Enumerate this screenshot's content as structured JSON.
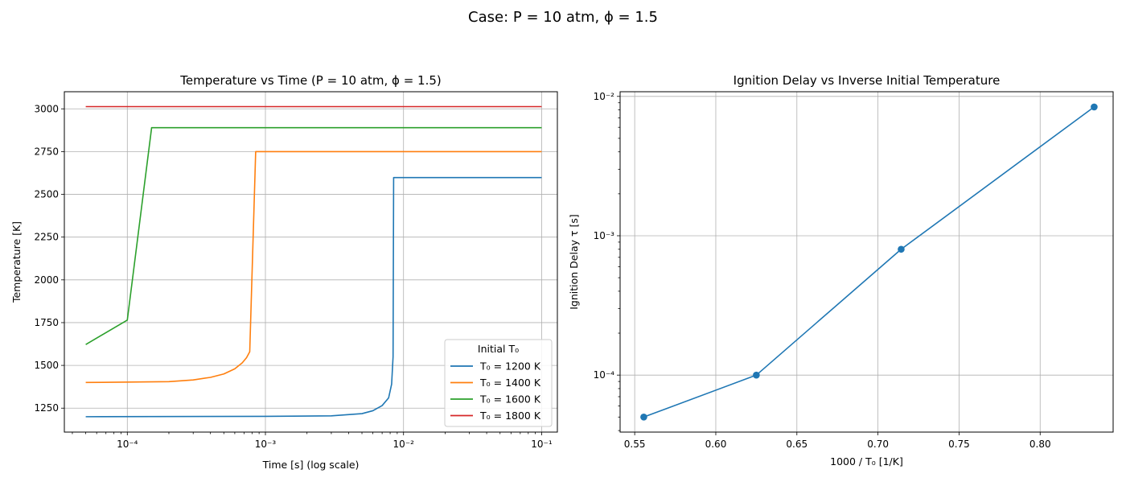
{
  "figure": {
    "suptitle": "Case: P = 10 atm, ϕ = 1.5"
  },
  "chart_data": [
    {
      "type": "line",
      "title": "Temperature vs Time (P = 10 atm, ϕ = 1.5)",
      "xlabel": "Time [s] (log scale)",
      "ylabel": "Temperature [K]",
      "xscale": "log",
      "xlim": [
        3.5e-05,
        0.13
      ],
      "ylim": [
        1110,
        3100
      ],
      "x_ticks": [
        0.0001,
        0.001,
        0.01,
        0.1
      ],
      "x_tick_labels": [
        "10⁻⁴",
        "10⁻³",
        "10⁻²",
        "10⁻¹"
      ],
      "y_ticks": [
        1250,
        1500,
        1750,
        2000,
        2250,
        2500,
        2750,
        3000
      ],
      "y_tick_labels": [
        "1250",
        "1500",
        "1750",
        "2000",
        "2250",
        "2500",
        "2750",
        "3000"
      ],
      "grid": true,
      "legend": {
        "title": "Initial T₀",
        "placement": "lower-right"
      },
      "series": [
        {
          "name": "T₀ = 1200 K",
          "color": "#1f77b4",
          "points": [
            [
              5e-05,
              1200
            ],
            [
              0.001,
              1202
            ],
            [
              0.003,
              1205
            ],
            [
              0.005,
              1218
            ],
            [
              0.006,
              1235
            ],
            [
              0.007,
              1265
            ],
            [
              0.0078,
              1310
            ],
            [
              0.0082,
              1390
            ],
            [
              0.0084,
              1550
            ],
            [
              0.00848,
              2598
            ],
            [
              0.1,
              2598
            ]
          ]
        },
        {
          "name": "T₀ = 1400 K",
          "color": "#ff7f0e",
          "points": [
            [
              5e-05,
              1400
            ],
            [
              0.0002,
              1405
            ],
            [
              0.0003,
              1415
            ],
            [
              0.0004,
              1430
            ],
            [
              0.0005,
              1450
            ],
            [
              0.0006,
              1480
            ],
            [
              0.00068,
              1515
            ],
            [
              0.00073,
              1545
            ],
            [
              0.00077,
              1580
            ],
            [
              0.00085,
              2750
            ],
            [
              0.1,
              2750
            ]
          ]
        },
        {
          "name": "T₀ = 1600 K",
          "color": "#2ca02c",
          "points": [
            [
              5e-05,
              1622
            ],
            [
              0.0001,
              1765
            ],
            [
              0.00015,
              2890
            ],
            [
              0.1,
              2890
            ]
          ]
        },
        {
          "name": "T₀ = 1800 K",
          "color": "#d62728",
          "points": [
            [
              5e-05,
              3013
            ],
            [
              0.1,
              3013
            ]
          ]
        }
      ]
    },
    {
      "type": "line",
      "title": "Ignition Delay vs Inverse Initial Temperature",
      "xlabel": "1000 / T₀ [1/K]",
      "ylabel": "Ignition Delay τ [s]",
      "yscale": "log",
      "xlim": [
        0.541,
        0.845
      ],
      "ylim": [
        3.9e-05,
        0.0108
      ],
      "x_ticks": [
        0.55,
        0.6,
        0.65,
        0.7,
        0.75,
        0.8
      ],
      "x_tick_labels": [
        "0.55",
        "0.60",
        "0.65",
        "0.70",
        "0.75",
        "0.80"
      ],
      "y_ticks": [
        0.0001,
        0.001,
        0.01
      ],
      "y_tick_labels": [
        "10⁻⁴",
        "10⁻³",
        "10⁻²"
      ],
      "grid": true,
      "series": [
        {
          "name": "",
          "color": "#1f77b4",
          "marker": "circle",
          "x": [
            0.5556,
            0.625,
            0.7143,
            0.8333
          ],
          "y": [
            5e-05,
            0.0001,
            0.0008,
            0.0084
          ]
        }
      ]
    }
  ]
}
